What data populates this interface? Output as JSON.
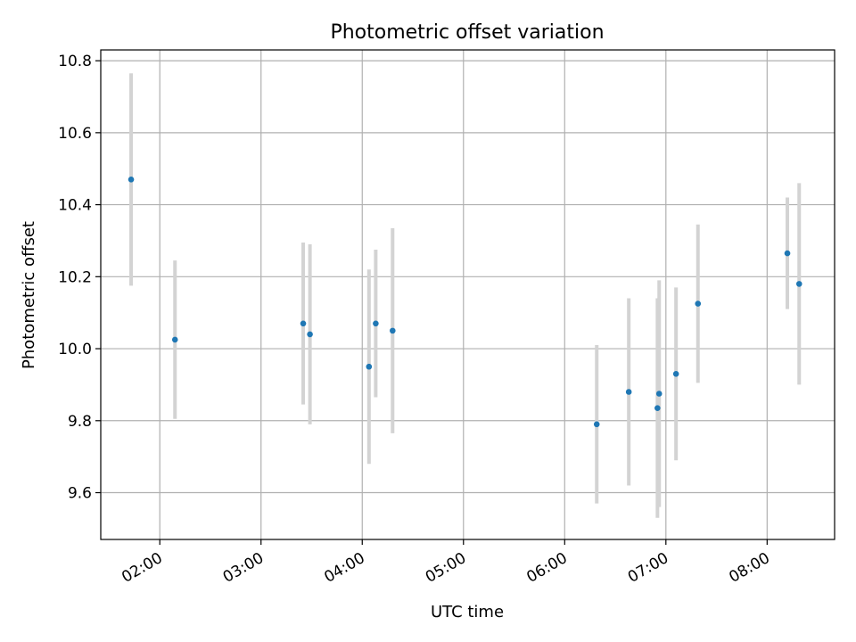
{
  "chart_data": {
    "type": "scatter",
    "title": "Photometric offset variation",
    "xlabel": "UTC time",
    "ylabel": "Photometric offset",
    "x_tick_labels": [
      "02:00",
      "03:00",
      "04:00",
      "05:00",
      "06:00",
      "07:00",
      "08:00"
    ],
    "y_tick_labels": [
      "9.6",
      "9.8",
      "10.0",
      "10.2",
      "10.4",
      "10.6",
      "10.8"
    ],
    "y_ticks": [
      9.6,
      9.8,
      10.0,
      10.2,
      10.4,
      10.6,
      10.8
    ],
    "x_ticks": [
      "02:00",
      "03:00",
      "04:00",
      "05:00",
      "06:00",
      "07:00",
      "08:00"
    ],
    "xlim": [
      "01:25",
      "08:40"
    ],
    "ylim": [
      9.47,
      10.83
    ],
    "grid": true,
    "colors": {
      "points": "#1f77b4",
      "error_bars": "#d3d3d3"
    },
    "points": [
      {
        "x": "01:43",
        "y": 10.47,
        "err": 0.295
      },
      {
        "x": "02:09",
        "y": 10.025,
        "err": 0.22
      },
      {
        "x": "03:25",
        "y": 10.07,
        "err": 0.225
      },
      {
        "x": "03:29",
        "y": 10.04,
        "err": 0.25
      },
      {
        "x": "04:04",
        "y": 9.95,
        "err": 0.27
      },
      {
        "x": "04:08",
        "y": 10.07,
        "err": 0.205
      },
      {
        "x": "04:18",
        "y": 10.05,
        "err": 0.285
      },
      {
        "x": "06:19",
        "y": 9.79,
        "err": 0.22
      },
      {
        "x": "06:38",
        "y": 9.88,
        "err": 0.26
      },
      {
        "x": "06:55",
        "y": 9.835,
        "err": 0.305
      },
      {
        "x": "06:56",
        "y": 9.875,
        "err": 0.315
      },
      {
        "x": "07:06",
        "y": 9.93,
        "err": 0.24
      },
      {
        "x": "07:19",
        "y": 10.125,
        "err": 0.22
      },
      {
        "x": "08:12",
        "y": 10.265,
        "err": 0.155
      },
      {
        "x": "08:19",
        "y": 10.18,
        "err": 0.28
      }
    ]
  }
}
